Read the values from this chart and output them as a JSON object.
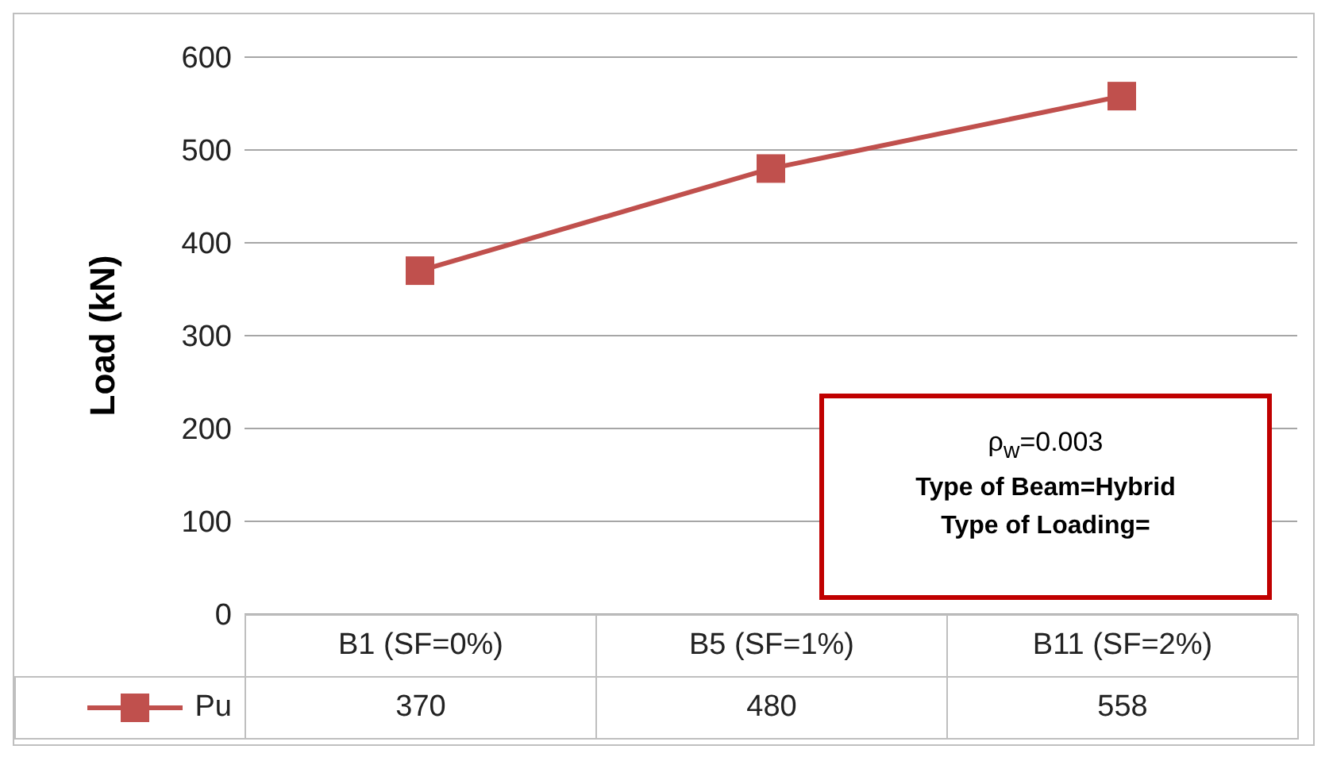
{
  "chart_data": {
    "type": "line",
    "ylabel": "Load (kN)",
    "categories": [
      "B1 (SF=0%)",
      "B5 (SF=1%)",
      "B11 (SF=2%)"
    ],
    "series": [
      {
        "name": "Pu",
        "color": "#c0504d",
        "values": [
          370,
          480,
          558
        ]
      }
    ],
    "ylim": [
      0,
      600
    ],
    "yticks": [
      0,
      100,
      200,
      300,
      400,
      500,
      600
    ],
    "grid": "y",
    "legend": "bottom",
    "marker": "square",
    "line_style": "solid",
    "data_labels": true,
    "annotations": [
      "ρ$_{w}$=0.003",
      "Type of Beam=Hybrid",
      "Type of Loading="
    ]
  }
}
